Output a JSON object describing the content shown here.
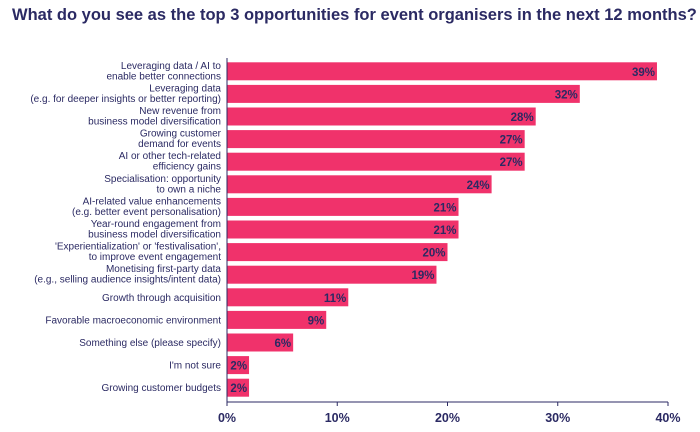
{
  "chart_data": {
    "type": "bar",
    "orientation": "horizontal",
    "title": "What do you see as the top 3 opportunities for event organisers in the next 12 months?",
    "categories": [
      [
        "Leveraging data / AI to",
        "enable better connections"
      ],
      [
        "Leveraging data",
        "(e.g. for deeper insights or better reporting)"
      ],
      [
        "New revenue from",
        "business model diversification"
      ],
      [
        "Growing customer",
        "demand for events"
      ],
      [
        "AI or other tech-related",
        "efficiency gains"
      ],
      [
        "Specialisation: opportunity",
        "to own a niche"
      ],
      [
        "AI-related value enhancements",
        "(e.g. better event personalisation)"
      ],
      [
        "Year-round engagement from",
        "business model diversification"
      ],
      [
        "'Experientialization' or 'festivalisation',",
        "to improve event engagement"
      ],
      [
        "Monetising first-party data",
        "(e.g., selling audience insights/intent data)"
      ],
      [
        "Growth through acquisition"
      ],
      [
        "Favorable macroeconomic environment"
      ],
      [
        "Something else (please specify)"
      ],
      [
        "I'm not sure"
      ],
      [
        "Growing customer budgets"
      ]
    ],
    "values": [
      39,
      32,
      28,
      27,
      27,
      24,
      21,
      21,
      20,
      19,
      11,
      9,
      6,
      2,
      2
    ],
    "value_labels": [
      "39%",
      "32%",
      "28%",
      "27%",
      "27%",
      "24%",
      "21%",
      "21%",
      "20%",
      "19%",
      "11%",
      "9%",
      "6%",
      "2%",
      "2%"
    ],
    "xlim": [
      0,
      40
    ],
    "xticks": [
      0,
      10,
      20,
      30,
      40
    ],
    "xtick_labels": [
      "0%",
      "10%",
      "20%",
      "30%",
      "40%"
    ],
    "grid": false,
    "legend": "none",
    "colors": {
      "bar": "#f0326b",
      "text": "#2b2a63",
      "axis": "#2b2a63"
    }
  }
}
